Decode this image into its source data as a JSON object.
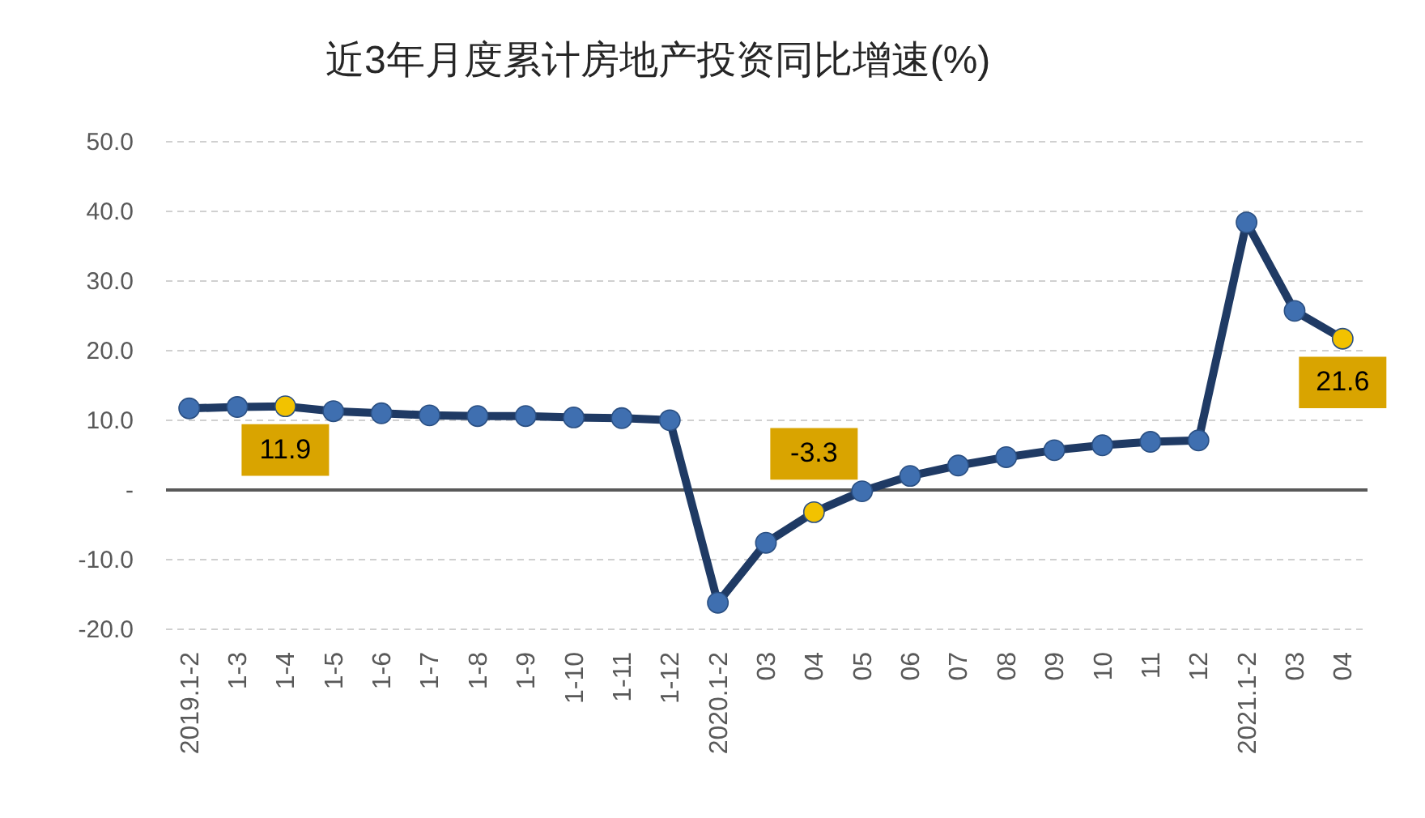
{
  "chart_data": {
    "type": "line",
    "title": "近3年月度累计房地产投资同比增速(%)",
    "categories": [
      "2019.1-2",
      "1-3",
      "1-4",
      "1-5",
      "1-6",
      "1-7",
      "1-8",
      "1-9",
      "1-10",
      "1-11",
      "1-12",
      "2020.1-2",
      "03",
      "04",
      "05",
      "06",
      "07",
      "08",
      "09",
      "10",
      "11",
      "12",
      "2021.1-2",
      "03",
      "04"
    ],
    "series": [
      {
        "color": "#1f3a64",
        "colors": [
          "#3f6fb0",
          "#3f6fb0",
          "#f2c200",
          "#3f6fb0",
          "#3f6fb0",
          "#3f6fb0",
          "#3f6fb0",
          "#3f6fb0",
          "#3f6fb0",
          "#3f6fb0",
          "#3f6fb0",
          "#3f6fb0",
          "#3f6fb0",
          "#f2c200",
          "#3f6fb0",
          "#3f6fb0",
          "#3f6fb0",
          "#3f6fb0",
          "#3f6fb0",
          "#3f6fb0",
          "#3f6fb0",
          "#3f6fb0",
          "#3f6fb0",
          "#3f6fb0",
          "#f2c200"
        ],
        "values": [
          11.6,
          11.8,
          11.9,
          11.2,
          10.9,
          10.6,
          10.5,
          10.5,
          10.3,
          10.2,
          9.9,
          -16.3,
          -7.7,
          -3.3,
          -0.3,
          1.9,
          3.4,
          4.6,
          5.6,
          6.3,
          6.8,
          7.0,
          38.3,
          25.6,
          21.6
        ],
        "value_labels": [
          null,
          null,
          "11.9",
          null,
          null,
          null,
          null,
          null,
          null,
          null,
          null,
          null,
          null,
          "-3.3",
          null,
          null,
          null,
          null,
          null,
          null,
          null,
          null,
          null,
          null,
          "21.6"
        ]
      }
    ],
    "ylim": [
      -20,
      50
    ],
    "yticks": [
      {
        "value": -20,
        "label": "-20.0"
      },
      {
        "value": -10,
        "label": "-10.0"
      },
      {
        "value": 0,
        "label": "-"
      },
      {
        "value": 10,
        "label": "10.0"
      },
      {
        "value": 20,
        "label": "20.0"
      },
      {
        "value": 30,
        "label": "30.0"
      },
      {
        "value": 40,
        "label": "40.0"
      },
      {
        "value": 50,
        "label": "50.0"
      }
    ],
    "grid": "y",
    "marker": "circle",
    "line_style": "solid"
  }
}
